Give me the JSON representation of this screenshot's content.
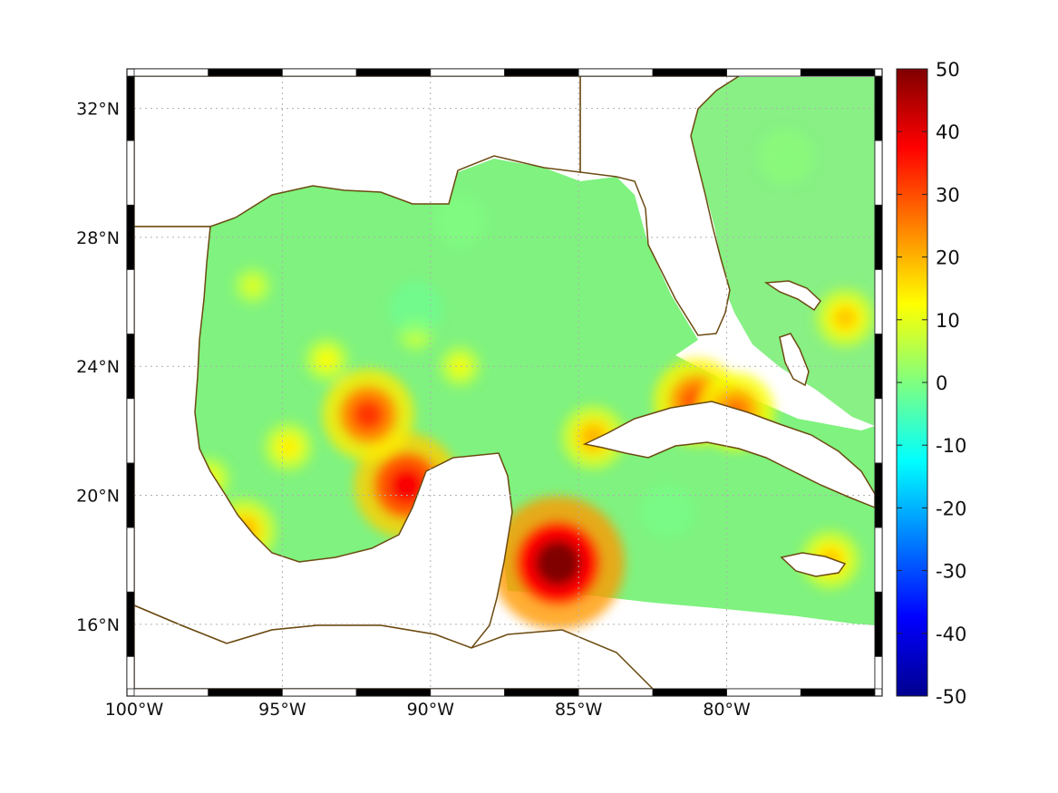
{
  "map": {
    "lon_range": [
      -100,
      -75
    ],
    "lat_range": [
      14,
      33
    ],
    "lon_ticks": [
      {
        "lon": -100,
        "label": "100°W"
      },
      {
        "lon": -95,
        "label": "95°W"
      },
      {
        "lon": -90,
        "label": "90°W"
      },
      {
        "lon": -85,
        "label": "85°W"
      },
      {
        "lon": -80,
        "label": "80°W"
      }
    ],
    "lat_ticks": [
      {
        "lat": 32,
        "label": "32°N"
      },
      {
        "lat": 28,
        "label": "28°N"
      },
      {
        "lat": 24,
        "label": "24°N"
      },
      {
        "lat": 20,
        "label": "20°N"
      },
      {
        "lat": 16,
        "label": "16°N"
      }
    ],
    "grid": true,
    "grid_style": "dotted",
    "frame": "black-white checker border",
    "coastline_color": "#6b4a10"
  },
  "colorbar": {
    "colormap": "jet",
    "range": [
      -50,
      50
    ],
    "position": "right",
    "ticks": [
      "50",
      "40",
      "30",
      "20",
      "10",
      "0",
      "-10",
      "-20",
      "-30",
      "-40",
      "-50"
    ]
  },
  "field": {
    "background_value": 3,
    "hotspots": [
      {
        "lon": -85.7,
        "lat": 17.9,
        "value": 50
      },
      {
        "lon": -90.8,
        "lat": 20.3,
        "value": 38
      },
      {
        "lon": -92.1,
        "lat": 22.5,
        "value": 32
      },
      {
        "lon": -81.0,
        "lat": 22.9,
        "value": 30
      },
      {
        "lon": -79.7,
        "lat": 22.6,
        "value": 26
      },
      {
        "lon": -96.3,
        "lat": 18.9,
        "value": 20
      },
      {
        "lon": -84.5,
        "lat": 21.8,
        "value": 20
      },
      {
        "lon": -76.0,
        "lat": 25.5,
        "value": 18
      },
      {
        "lon": -76.5,
        "lat": 18.0,
        "value": 18
      },
      {
        "lon": -94.8,
        "lat": 21.5,
        "value": 14
      },
      {
        "lon": -93.5,
        "lat": 24.2,
        "value": 12
      },
      {
        "lon": -89.0,
        "lat": 24.0,
        "value": 11
      },
      {
        "lon": -97.5,
        "lat": 20.5,
        "value": 12
      },
      {
        "lon": -90.5,
        "lat": 25.0,
        "value": 8
      },
      {
        "lon": -96.0,
        "lat": 26.5,
        "value": 9
      }
    ],
    "coolspots": [
      {
        "lon": -90.5,
        "lat": 25.8,
        "value": -2
      },
      {
        "lon": -89.0,
        "lat": 28.5,
        "value": 0
      },
      {
        "lon": -82.0,
        "lat": 19.5,
        "value": -1
      },
      {
        "lon": -78.0,
        "lat": 30.5,
        "value": 1
      }
    ]
  }
}
